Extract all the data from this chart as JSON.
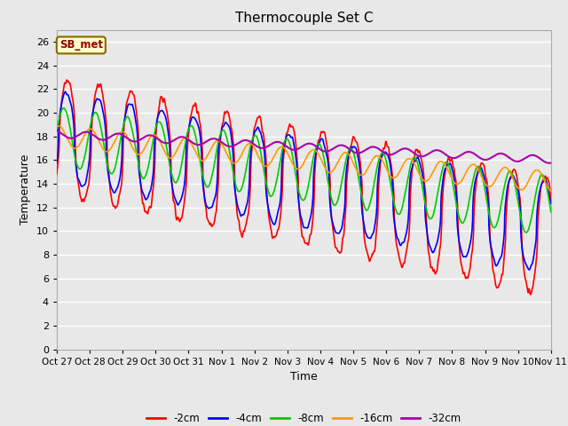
{
  "title": "Thermocouple Set C",
  "xlabel": "Time",
  "ylabel": "Temperature",
  "annotation": "SB_met",
  "ylim": [
    0,
    27
  ],
  "yticks": [
    0,
    2,
    4,
    6,
    8,
    10,
    12,
    14,
    16,
    18,
    20,
    22,
    24,
    26
  ],
  "x_labels": [
    "Oct 27",
    "Oct 28",
    "Oct 29",
    "Oct 30",
    "Oct 31",
    "Nov 1",
    "Nov 2",
    "Nov 3",
    "Nov 4",
    "Nov 5",
    "Nov 6",
    "Nov 7",
    "Nov 8",
    "Nov 9",
    "Nov 10",
    "Nov 11"
  ],
  "series": {
    "-2cm": {
      "color": "#ff0000",
      "lw": 1.2
    },
    "-4cm": {
      "color": "#0000ff",
      "lw": 1.2
    },
    "-8cm": {
      "color": "#00cc00",
      "lw": 1.2
    },
    "-16cm": {
      "color": "#ff9900",
      "lw": 1.2
    },
    "-32cm": {
      "color": "#aa00aa",
      "lw": 1.5
    }
  },
  "background_color": "#e8e8e8",
  "plot_bg_color": "#e8e8e8",
  "grid_color": "#ffffff",
  "n_days": 15.5
}
